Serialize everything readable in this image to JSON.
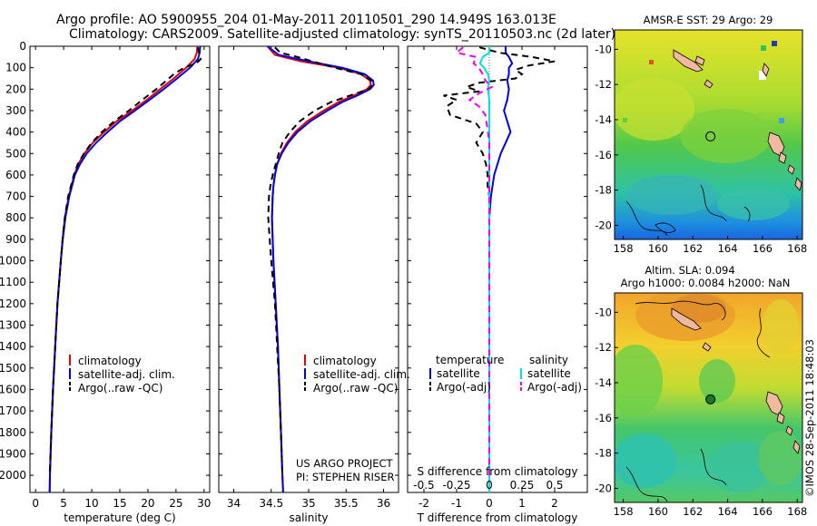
{
  "header": {
    "line1": "Argo profile: AO 5900955_204 01-May-2011 20110501_290 14.949S 163.013E",
    "line2": "Climatology: CARS2009. Satellite-adjusted climatology: synTS_20110503.nc (2d later)"
  },
  "colors": {
    "climatology": "#e00000",
    "satellite": "#0000dd",
    "argo": "#000000",
    "salinity_sat": "#00dddd",
    "salinity_argo": "#ee00ee",
    "circle": "#1a7a1a"
  },
  "chart_data": [
    {
      "type": "line",
      "id": "temperature",
      "xlabel": "temperature (deg C)",
      "ylabel": "",
      "xlim": [
        -1,
        31
      ],
      "ylim": [
        2080,
        0
      ],
      "xticks": [
        0,
        5,
        10,
        15,
        20,
        25,
        30
      ],
      "xtick_labels": [
        "0",
        "5",
        "10",
        "15",
        "20",
        "25",
        "30"
      ],
      "yticks": [
        0,
        100,
        200,
        300,
        400,
        500,
        600,
        700,
        800,
        900,
        1000,
        1100,
        1200,
        1300,
        1400,
        1500,
        1600,
        1700,
        1800,
        1900,
        2000
      ],
      "ytick_labels": [
        "0",
        "100",
        "200",
        "300",
        "400",
        "500",
        "600",
        "700",
        "800",
        "900",
        "1000",
        "1100",
        "1200",
        "1300",
        "1400",
        "1500",
        "1600",
        "1700",
        "1800",
        "1900",
        "2000"
      ],
      "legend": [
        "climatology",
        "satellite-adj. clim.",
        "Argo(..raw -QC)"
      ],
      "series": [
        {
          "name": "climatology",
          "color": "#e00000",
          "dash": "",
          "depth": [
            0,
            30,
            60,
            100,
            150,
            200,
            250,
            300,
            350,
            400,
            450,
            500,
            550,
            600,
            700,
            800,
            900,
            1000,
            1200,
            1400,
            1600,
            1800,
            2000,
            2080
          ],
          "values": [
            28.8,
            28.7,
            28.3,
            26.8,
            24.6,
            22.2,
            19.8,
            17.2,
            14.4,
            12.2,
            10.2,
            8.7,
            7.6,
            6.9,
            5.9,
            5.2,
            4.8,
            4.5,
            3.9,
            3.5,
            3.1,
            2.8,
            2.55,
            2.5
          ]
        },
        {
          "name": "satellite-adj. clim.",
          "color": "#0000dd",
          "dash": "",
          "depth": [
            0,
            30,
            60,
            100,
            150,
            200,
            250,
            300,
            350,
            400,
            450,
            500,
            550,
            600,
            700,
            800,
            900,
            1000,
            1200,
            1400,
            1600,
            1800,
            2000,
            2080
          ],
          "values": [
            29.3,
            29.2,
            28.9,
            27.5,
            25.2,
            22.8,
            20.3,
            17.7,
            15.0,
            12.8,
            10.8,
            9.1,
            7.9,
            7.0,
            6.0,
            5.3,
            4.85,
            4.5,
            3.9,
            3.5,
            3.1,
            2.8,
            2.55,
            2.5
          ]
        },
        {
          "name": "Argo(..raw -QC)",
          "color": "#000000",
          "dash": "7,5",
          "depth": [
            5,
            20,
            40,
            60,
            80,
            100,
            130,
            160,
            200,
            250,
            300,
            350,
            400,
            450,
            500,
            550,
            600,
            700,
            800,
            900,
            1000,
            1200,
            1400,
            1600,
            1800,
            2000
          ],
          "values": [
            28.9,
            29.0,
            29.2,
            29.4,
            28.6,
            26.4,
            24.6,
            23.3,
            21.5,
            19.0,
            16.6,
            14.0,
            11.8,
            10.0,
            8.6,
            7.5,
            6.8,
            5.8,
            5.2,
            4.8,
            4.5,
            3.9,
            3.5,
            3.1,
            2.8,
            2.5
          ]
        }
      ]
    },
    {
      "type": "line",
      "id": "salinity",
      "xlabel": "salinity",
      "ylabel": "",
      "xlim": [
        33.8,
        36.2
      ],
      "ylim": [
        2080,
        0
      ],
      "xticks": [
        34,
        34.5,
        35,
        35.5,
        36
      ],
      "xtick_labels": [
        "34",
        "34.5",
        "35",
        "35.5",
        "36"
      ],
      "legend": [
        "climatology",
        "satellite-adj. clim.",
        "Argo(..raw -QC)"
      ],
      "annotations": [
        "US ARGO PROJECT",
        "PI: STEPHEN RISER"
      ],
      "series": [
        {
          "name": "climatology",
          "color": "#e00000",
          "dash": "",
          "depth": [
            0,
            40,
            70,
            100,
            130,
            160,
            180,
            200,
            230,
            260,
            300,
            350,
            400,
            450,
            500,
            550,
            600,
            650,
            700,
            750,
            800,
            900,
            1000,
            1200,
            1400,
            1600,
            1800,
            2000,
            2080
          ],
          "values": [
            34.45,
            34.55,
            34.9,
            35.4,
            35.7,
            35.82,
            35.83,
            35.78,
            35.6,
            35.4,
            35.2,
            34.98,
            34.82,
            34.71,
            34.63,
            34.58,
            34.55,
            34.53,
            34.52,
            34.515,
            34.51,
            34.52,
            34.53,
            34.56,
            34.59,
            34.61,
            34.63,
            34.65,
            34.66
          ]
        },
        {
          "name": "satellite-adj. clim.",
          "color": "#0000dd",
          "dash": "",
          "depth": [
            0,
            40,
            70,
            100,
            130,
            160,
            180,
            200,
            230,
            260,
            300,
            350,
            400,
            450,
            500,
            550,
            600,
            650,
            700,
            750,
            800,
            900,
            1000,
            1200,
            1400,
            1600,
            1800,
            2000,
            2080
          ],
          "values": [
            34.45,
            34.6,
            35.0,
            35.45,
            35.75,
            35.86,
            35.87,
            35.82,
            35.65,
            35.45,
            35.25,
            35.02,
            34.85,
            34.73,
            34.64,
            34.58,
            34.55,
            34.53,
            34.52,
            34.515,
            34.51,
            34.52,
            34.53,
            34.56,
            34.59,
            34.61,
            34.63,
            34.65,
            34.66
          ]
        },
        {
          "name": "Argo(..raw -QC)",
          "color": "#000000",
          "dash": "7,5",
          "depth": [
            5,
            30,
            50,
            70,
            100,
            130,
            160,
            180,
            200,
            230,
            260,
            300,
            350,
            400,
            450,
            500,
            550,
            600,
            650,
            700,
            800,
            900,
            1000,
            1200,
            1400,
            1600,
            1800,
            2000
          ],
          "values": [
            34.55,
            34.62,
            34.85,
            35.05,
            35.35,
            35.7,
            35.84,
            35.86,
            35.8,
            35.55,
            35.3,
            35.08,
            34.88,
            34.75,
            34.65,
            34.6,
            34.56,
            34.52,
            34.49,
            34.47,
            34.46,
            34.48,
            34.5,
            34.55,
            34.58,
            34.61,
            34.63,
            34.65
          ]
        }
      ]
    },
    {
      "type": "line",
      "id": "difference",
      "xlabel": "T difference from climatology",
      "xlabel_secondary": "S difference from climatology",
      "xlim": [
        -2.5,
        3.0
      ],
      "ylim": [
        2080,
        0
      ],
      "xticks": [
        -2,
        -1,
        0,
        1,
        2
      ],
      "xtick_labels": [
        "-2",
        "-1",
        "0",
        "1",
        "2"
      ],
      "secondary_ticks": [
        "-0.5",
        "-0.25",
        "0",
        "0.25",
        "0.5"
      ],
      "legend_headers": [
        "temperature",
        "salinity"
      ],
      "legend": [
        "satellite",
        "Argo(-adj)",
        "satellite",
        "Argo(-adj)"
      ],
      "series": [
        {
          "name": "temperature satellite",
          "color": "#0000dd",
          "dash": "",
          "depth": [
            0,
            30,
            50,
            80,
            100,
            130,
            160,
            200,
            250,
            300,
            350,
            400,
            450,
            500,
            550,
            600,
            700,
            800,
            900,
            1000,
            1200,
            1500,
            1800,
            2080
          ],
          "values": [
            0.5,
            0.5,
            0.6,
            0.7,
            0.6,
            0.6,
            0.55,
            0.6,
            0.55,
            0.45,
            0.55,
            0.65,
            0.5,
            0.35,
            0.25,
            0.15,
            0.05,
            0.0,
            0.0,
            0.0,
            0.0,
            0.0,
            0.0,
            0.0
          ]
        },
        {
          "name": "temperature Argo(-adj)",
          "color": "#000000",
          "dash": "7,5",
          "depth": [
            5,
            30,
            50,
            70,
            90,
            110,
            130,
            150,
            170,
            190,
            210,
            230,
            250,
            280,
            320,
            360,
            400,
            450,
            500,
            550,
            600,
            650,
            700,
            800,
            900,
            1000,
            1200,
            1500,
            1800,
            2000
          ],
          "values": [
            -0.3,
            0.3,
            1.3,
            2.0,
            1.2,
            0.8,
            1.0,
            0.8,
            -0.3,
            -0.7,
            -0.3,
            -1.4,
            -1.0,
            -1.3,
            -1.2,
            -0.4,
            -0.2,
            -0.4,
            -0.2,
            -0.1,
            -0.05,
            -0.05,
            0.0,
            0.0,
            0.0,
            0.0,
            0.0,
            0.0,
            0.0,
            0.0
          ]
        },
        {
          "name": "salinity satellite",
          "color": "#00dddd",
          "dash": "",
          "depth": [
            0,
            30,
            50,
            80,
            100,
            130,
            160,
            200,
            250,
            300,
            400,
            500,
            600,
            800,
            1000,
            1500,
            2080
          ],
          "values": [
            0.0,
            0.0,
            -0.05,
            -0.07,
            -0.04,
            -0.01,
            0.0,
            -0.01,
            0.0,
            0.0,
            0.0,
            0.0,
            0.0,
            0.0,
            0.0,
            0.0,
            0.0
          ]
        },
        {
          "name": "salinity Argo(-adj)",
          "color": "#ee00ee",
          "dash": "7,5",
          "depth": [
            5,
            30,
            50,
            80,
            100,
            130,
            160,
            190,
            220,
            250,
            280,
            320,
            360,
            400,
            450,
            500,
            600,
            800,
            1000,
            1500,
            2000
          ],
          "values": [
            -0.2,
            -0.25,
            -0.1,
            -0.12,
            -0.08,
            -0.05,
            -0.03,
            0.02,
            -0.08,
            -0.15,
            -0.08,
            -0.03,
            -0.02,
            -0.01,
            0.0,
            0.0,
            0.0,
            0.0,
            0.0,
            0.0,
            0.0
          ]
        }
      ]
    },
    {
      "type": "heatmap",
      "id": "sst_map",
      "title": "AMSR-E SST: 29 Argo: 29",
      "xticks": [
        158,
        160,
        162,
        164,
        166,
        168
      ],
      "xtick_labels": [
        "158",
        "160",
        "162",
        "164",
        "166",
        "168"
      ],
      "yticks": [
        -10,
        -12,
        -14,
        -16,
        -18,
        -20
      ],
      "ytick_labels": [
        "-10",
        "-12",
        "-14",
        "-16",
        "-18",
        "-20"
      ],
      "xlim": [
        157.5,
        168.3
      ],
      "ylim": [
        -20.8,
        -8.9
      ],
      "profile_location": [
        163.013,
        -14.949
      ]
    },
    {
      "type": "heatmap",
      "id": "sla_map",
      "title": "Altim. SLA: 0.094",
      "subtitle": "Argo h1000: 0.0084 h2000: NaN",
      "xticks": [
        158,
        160,
        162,
        164,
        166,
        168
      ],
      "xtick_labels": [
        "158",
        "160",
        "162",
        "164",
        "166",
        "168"
      ],
      "yticks": [
        -10,
        -12,
        -14,
        -16,
        -18,
        -20
      ],
      "ytick_labels": [
        "-10",
        "-12",
        "-14",
        "-16",
        "-18",
        "-20"
      ],
      "xlim": [
        157.5,
        168.3
      ],
      "ylim": [
        -20.8,
        -8.9
      ],
      "profile_location": [
        163.013,
        -14.949
      ]
    }
  ],
  "footer": {
    "stamp": "©IMOS 28-Sep-2011 18:48:03"
  }
}
